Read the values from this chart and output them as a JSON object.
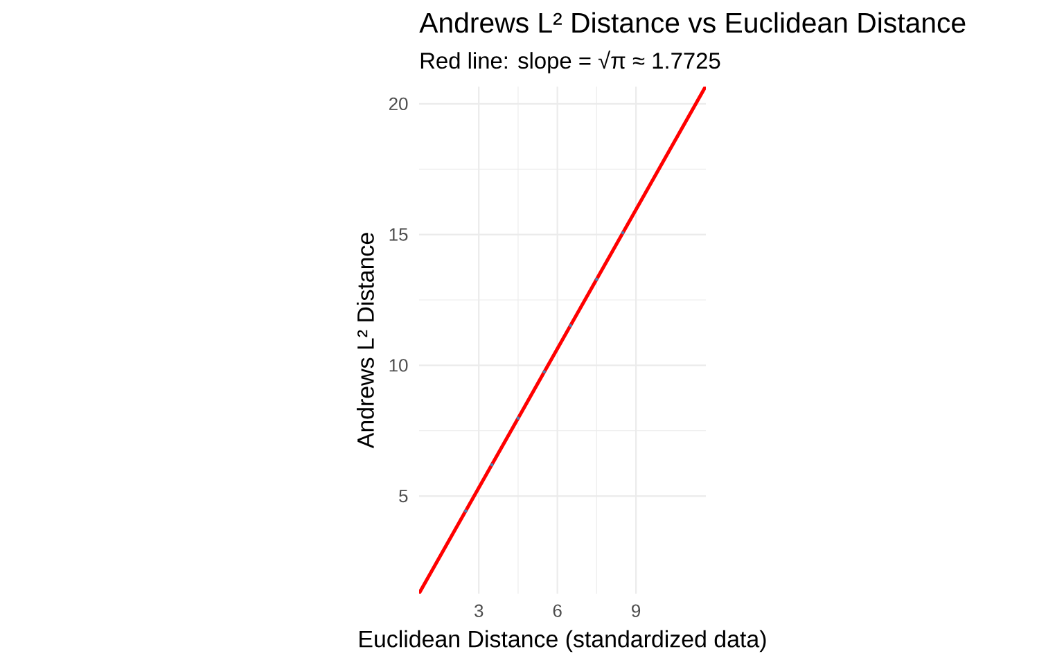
{
  "chart_data": {
    "type": "scatter",
    "title": "Andrews L² Distance vs Euclidean Distance",
    "subtitle": "Red line: slope = √π ≈ 1.7725",
    "xlabel": "Euclidean Distance (standardized data)",
    "ylabel": "Andrews L² Distance",
    "xlim": [
      0.72,
      11.67
    ],
    "ylim": [
      1.27,
      20.66
    ],
    "xticks": [
      3,
      6,
      9
    ],
    "yticks": [
      5,
      10,
      15,
      20
    ],
    "grid": true,
    "series": [
      {
        "color": "#4682b4",
        "x": [
          2.5,
          3.5,
          4.5,
          5.5,
          6.5,
          7.5,
          8.5
        ],
        "values": [
          4.43,
          6.2,
          7.98,
          9.75,
          11.52,
          13.29,
          15.07
        ]
      },
      {
        "type": "line",
        "color": "#ff0000",
        "line_style": "solid",
        "x": [
          0.72,
          11.65
        ],
        "values": [
          1.28,
          20.65
        ]
      }
    ]
  }
}
